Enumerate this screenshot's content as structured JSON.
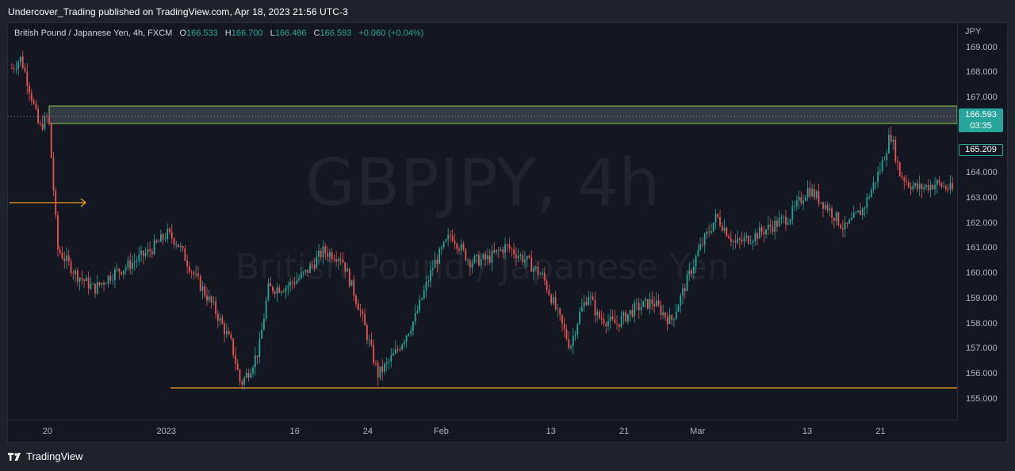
{
  "publish": {
    "text": "Undercover_Trading published on TradingView.com, Apr 18, 2023 21:56 UTC-3"
  },
  "legend": {
    "title": "British Pound / Japanese Yen, 4h, FXCM",
    "o_key": "O",
    "o_val": "166.533",
    "h_key": "H",
    "h_val": "166.700",
    "l_key": "L",
    "l_val": "166.486",
    "c_key": "C",
    "c_val": "166.593",
    "change": "+0.060 (+0.04%)"
  },
  "watermark": {
    "symbol": "GBPJPY, 4h",
    "name": "British Pound / Japanese Yen"
  },
  "price_axis": {
    "currency": "JPY",
    "current_price": "166.593",
    "countdown": "03:35",
    "secondary_price": "165.209"
  },
  "footer": {
    "brand": "TradingView"
  },
  "colors": {
    "up": "#26a69a",
    "down": "#ef5350",
    "zone_fill": "#4f5b62",
    "zone_border": "#8bc34a",
    "support_line": "#f7a021",
    "arrow": "#f7a021",
    "background": "#131722"
  },
  "chart_data": {
    "type": "candlestick",
    "symbol": "GBPJPY",
    "timeframe": "4h",
    "ylim": [
      154.2,
      170.0
    ],
    "y_ticks": [
      "169.000",
      "168.000",
      "167.000",
      "164.000",
      "163.000",
      "162.000",
      "161.000",
      "160.000",
      "159.000",
      "158.000",
      "157.000",
      "156.000",
      "155.000"
    ],
    "x_ticks": [
      "20",
      "2023",
      "16",
      "24",
      "Feb",
      "13",
      "21",
      "Mar",
      "13",
      "21"
    ],
    "x_tick_dates": [
      "2022-12-20",
      "2023-01-02",
      "2023-01-16",
      "2023-01-24",
      "2023-02-01",
      "2023-02-13",
      "2023-02-21",
      "2023-03-01",
      "2023-03-13",
      "2023-03-21"
    ],
    "x_range": [
      "2022-12-16",
      "2023-03-29"
    ],
    "close_path": [
      [
        "2022-12-16",
        168.2
      ],
      [
        "2022-12-17",
        168.6
      ],
      [
        "2022-12-18",
        167.3
      ],
      [
        "2022-12-19",
        165.8
      ],
      [
        "2022-12-20",
        166.3
      ],
      [
        "2022-12-21",
        161.0
      ],
      [
        "2022-12-22",
        160.5
      ],
      [
        "2022-12-23",
        160.0
      ],
      [
        "2022-12-25",
        159.4
      ],
      [
        "2022-12-27",
        160.0
      ],
      [
        "2022-12-29",
        160.4
      ],
      [
        "2022-12-31",
        160.9
      ],
      [
        "2023-01-02",
        161.6
      ],
      [
        "2023-01-03",
        161.3
      ],
      [
        "2023-01-05",
        159.9
      ],
      [
        "2023-01-07",
        158.7
      ],
      [
        "2023-01-09",
        157.2
      ],
      [
        "2023-01-10",
        155.6
      ],
      [
        "2023-01-11",
        156.2
      ],
      [
        "2023-01-12",
        157.0
      ],
      [
        "2023-01-13",
        159.4
      ],
      [
        "2023-01-15",
        159.5
      ],
      [
        "2023-01-17",
        160.0
      ],
      [
        "2023-01-19",
        160.9
      ],
      [
        "2023-01-21",
        160.7
      ],
      [
        "2023-01-23",
        158.6
      ],
      [
        "2023-01-24",
        157.3
      ],
      [
        "2023-01-25",
        156.0
      ],
      [
        "2023-01-26",
        156.4
      ],
      [
        "2023-01-27",
        156.9
      ],
      [
        "2023-01-29",
        158.2
      ],
      [
        "2023-01-31",
        160.3
      ],
      [
        "2023-02-02",
        161.6
      ],
      [
        "2023-02-04",
        160.5
      ],
      [
        "2023-02-06",
        160.6
      ],
      [
        "2023-02-08",
        161.1
      ],
      [
        "2023-02-10",
        160.6
      ],
      [
        "2023-02-12",
        159.9
      ],
      [
        "2023-02-13",
        159.0
      ],
      [
        "2023-02-15",
        157.1
      ],
      [
        "2023-02-16",
        158.4
      ],
      [
        "2023-02-17",
        159.2
      ],
      [
        "2023-02-18",
        158.3
      ],
      [
        "2023-02-20",
        158.0
      ],
      [
        "2023-02-22",
        158.6
      ],
      [
        "2023-02-24",
        158.9
      ],
      [
        "2023-02-26",
        158.1
      ],
      [
        "2023-02-27",
        159.0
      ],
      [
        "2023-03-01",
        160.9
      ],
      [
        "2023-03-03",
        162.3
      ],
      [
        "2023-03-05",
        161.2
      ],
      [
        "2023-03-07",
        161.5
      ],
      [
        "2023-03-09",
        161.9
      ],
      [
        "2023-03-11",
        162.3
      ],
      [
        "2023-03-13",
        163.4
      ],
      [
        "2023-03-15",
        162.7
      ],
      [
        "2023-03-17",
        161.8
      ],
      [
        "2023-03-19",
        162.6
      ],
      [
        "2023-03-21",
        164.3
      ],
      [
        "2023-03-22",
        165.6
      ],
      [
        "2023-03-23",
        164.0
      ],
      [
        "2023-03-24",
        163.6
      ],
      [
        "2023-03-25",
        163.4
      ],
      [
        "2023-03-27",
        163.6
      ],
      [
        "2023-03-29",
        163.3
      ]
    ],
    "last_close": 166.593
  }
}
